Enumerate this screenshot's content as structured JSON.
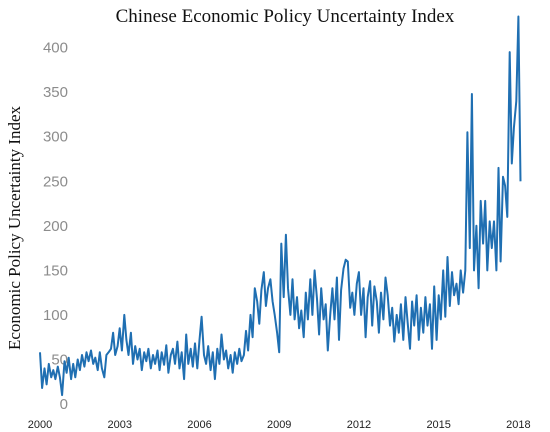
{
  "chart_data": {
    "type": "line",
    "title": "Chinese Economic Policy Uncertainty Index",
    "xlabel": "",
    "ylabel": "Economic Policy Uncertainty Index",
    "xlim": [
      2000.0,
      2019.0
    ],
    "ylim": [
      0,
      440
    ],
    "grid": false,
    "line_color": "#1f6fb2",
    "y_ticks": [
      {
        "label": "0",
        "value": 0
      },
      {
        "label": "50",
        "value": 50
      },
      {
        "label": "100",
        "value": 100
      },
      {
        "label": "150",
        "value": 150
      },
      {
        "label": "200",
        "value": 200
      },
      {
        "label": "250",
        "value": 250
      },
      {
        "label": "300",
        "value": 300
      },
      {
        "label": "350",
        "value": 350
      },
      {
        "label": "400",
        "value": 400
      }
    ],
    "x_ticks": [
      {
        "label": "2000",
        "value": 2000
      },
      {
        "label": "2003",
        "value": 2003
      },
      {
        "label": "2006",
        "value": 2006
      },
      {
        "label": "2009",
        "value": 2009
      },
      {
        "label": "2012",
        "value": 2012
      },
      {
        "label": "2015",
        "value": 2015
      },
      {
        "label": "2018",
        "value": 2018
      }
    ],
    "series": [
      {
        "values": [
          [
            2000.0,
            58
          ],
          [
            2000.08,
            18
          ],
          [
            2000.17,
            40
          ],
          [
            2000.25,
            22
          ],
          [
            2000.33,
            45
          ],
          [
            2000.42,
            30
          ],
          [
            2000.5,
            38
          ],
          [
            2000.58,
            28
          ],
          [
            2000.67,
            42
          ],
          [
            2000.75,
            30
          ],
          [
            2000.83,
            10
          ],
          [
            2000.92,
            48
          ],
          [
            2001.0,
            35
          ],
          [
            2001.08,
            52
          ],
          [
            2001.17,
            28
          ],
          [
            2001.25,
            45
          ],
          [
            2001.33,
            30
          ],
          [
            2001.42,
            50
          ],
          [
            2001.5,
            38
          ],
          [
            2001.58,
            55
          ],
          [
            2001.67,
            42
          ],
          [
            2001.75,
            58
          ],
          [
            2001.83,
            48
          ],
          [
            2001.92,
            60
          ],
          [
            2002.0,
            45
          ],
          [
            2002.08,
            52
          ],
          [
            2002.17,
            38
          ],
          [
            2002.25,
            58
          ],
          [
            2002.33,
            40
          ],
          [
            2002.42,
            30
          ],
          [
            2002.5,
            55
          ],
          [
            2002.58,
            58
          ],
          [
            2002.67,
            62
          ],
          [
            2002.75,
            80
          ],
          [
            2002.83,
            55
          ],
          [
            2002.92,
            65
          ],
          [
            2003.0,
            85
          ],
          [
            2003.08,
            60
          ],
          [
            2003.17,
            100
          ],
          [
            2003.25,
            72
          ],
          [
            2003.33,
            55
          ],
          [
            2003.42,
            80
          ],
          [
            2003.5,
            45
          ],
          [
            2003.58,
            65
          ],
          [
            2003.67,
            50
          ],
          [
            2003.75,
            62
          ],
          [
            2003.83,
            38
          ],
          [
            2003.92,
            58
          ],
          [
            2004.0,
            48
          ],
          [
            2004.08,
            62
          ],
          [
            2004.17,
            40
          ],
          [
            2004.25,
            55
          ],
          [
            2004.33,
            45
          ],
          [
            2004.42,
            60
          ],
          [
            2004.5,
            38
          ],
          [
            2004.58,
            58
          ],
          [
            2004.67,
            44
          ],
          [
            2004.75,
            66
          ],
          [
            2004.83,
            35
          ],
          [
            2004.92,
            55
          ],
          [
            2005.0,
            62
          ],
          [
            2005.08,
            45
          ],
          [
            2005.17,
            70
          ],
          [
            2005.25,
            40
          ],
          [
            2005.33,
            58
          ],
          [
            2005.42,
            28
          ],
          [
            2005.5,
            78
          ],
          [
            2005.58,
            45
          ],
          [
            2005.67,
            62
          ],
          [
            2005.75,
            42
          ],
          [
            2005.83,
            68
          ],
          [
            2005.92,
            40
          ],
          [
            2006.0,
            72
          ],
          [
            2006.08,
            98
          ],
          [
            2006.17,
            55
          ],
          [
            2006.25,
            45
          ],
          [
            2006.33,
            65
          ],
          [
            2006.42,
            38
          ],
          [
            2006.5,
            58
          ],
          [
            2006.58,
            28
          ],
          [
            2006.67,
            62
          ],
          [
            2006.75,
            45
          ],
          [
            2006.83,
            78
          ],
          [
            2006.92,
            50
          ],
          [
            2007.0,
            60
          ],
          [
            2007.08,
            40
          ],
          [
            2007.17,
            55
          ],
          [
            2007.25,
            35
          ],
          [
            2007.33,
            58
          ],
          [
            2007.42,
            45
          ],
          [
            2007.5,
            62
          ],
          [
            2007.58,
            48
          ],
          [
            2007.67,
            55
          ],
          [
            2007.75,
            82
          ],
          [
            2007.83,
            60
          ],
          [
            2007.92,
            100
          ],
          [
            2008.0,
            75
          ],
          [
            2008.08,
            130
          ],
          [
            2008.17,
            115
          ],
          [
            2008.25,
            90
          ],
          [
            2008.33,
            128
          ],
          [
            2008.42,
            148
          ],
          [
            2008.5,
            110
          ],
          [
            2008.58,
            130
          ],
          [
            2008.67,
            140
          ],
          [
            2008.75,
            115
          ],
          [
            2008.83,
            100
          ],
          [
            2008.92,
            80
          ],
          [
            2009.0,
            58
          ],
          [
            2009.08,
            180
          ],
          [
            2009.17,
            120
          ],
          [
            2009.25,
            190
          ],
          [
            2009.33,
            130
          ],
          [
            2009.42,
            100
          ],
          [
            2009.5,
            140
          ],
          [
            2009.58,
            95
          ],
          [
            2009.67,
            120
          ],
          [
            2009.75,
            85
          ],
          [
            2009.83,
            105
          ],
          [
            2009.92,
            75
          ],
          [
            2010.0,
            125
          ],
          [
            2010.08,
            95
          ],
          [
            2010.17,
            140
          ],
          [
            2010.25,
            100
          ],
          [
            2010.33,
            150
          ],
          [
            2010.42,
            118
          ],
          [
            2010.5,
            78
          ],
          [
            2010.58,
            130
          ],
          [
            2010.67,
            95
          ],
          [
            2010.75,
            112
          ],
          [
            2010.83,
            60
          ],
          [
            2010.92,
            100
          ],
          [
            2011.0,
            130
          ],
          [
            2011.08,
            95
          ],
          [
            2011.17,
            142
          ],
          [
            2011.25,
            72
          ],
          [
            2011.33,
            128
          ],
          [
            2011.42,
            152
          ],
          [
            2011.5,
            162
          ],
          [
            2011.58,
            160
          ],
          [
            2011.67,
            108
          ],
          [
            2011.75,
            125
          ],
          [
            2011.83,
            100
          ],
          [
            2011.92,
            135
          ],
          [
            2012.0,
            148
          ],
          [
            2012.08,
            100
          ],
          [
            2012.17,
            130
          ],
          [
            2012.25,
            75
          ],
          [
            2012.33,
            120
          ],
          [
            2012.42,
            138
          ],
          [
            2012.5,
            88
          ],
          [
            2012.58,
            132
          ],
          [
            2012.67,
            115
          ],
          [
            2012.75,
            80
          ],
          [
            2012.83,
            125
          ],
          [
            2012.92,
            95
          ],
          [
            2013.0,
            142
          ],
          [
            2013.08,
            122
          ],
          [
            2013.17,
            88
          ],
          [
            2013.25,
            108
          ],
          [
            2013.33,
            70
          ],
          [
            2013.42,
            100
          ],
          [
            2013.5,
            80
          ],
          [
            2013.58,
            112
          ],
          [
            2013.67,
            72
          ],
          [
            2013.75,
            120
          ],
          [
            2013.83,
            92
          ],
          [
            2013.92,
            62
          ],
          [
            2014.0,
            115
          ],
          [
            2014.08,
            88
          ],
          [
            2014.17,
            122
          ],
          [
            2014.25,
            72
          ],
          [
            2014.33,
            108
          ],
          [
            2014.42,
            80
          ],
          [
            2014.5,
            120
          ],
          [
            2014.58,
            88
          ],
          [
            2014.67,
            112
          ],
          [
            2014.75,
            62
          ],
          [
            2014.83,
            132
          ],
          [
            2014.92,
            72
          ],
          [
            2015.0,
            122
          ],
          [
            2015.08,
            95
          ],
          [
            2015.17,
            150
          ],
          [
            2015.25,
            98
          ],
          [
            2015.33,
            165
          ],
          [
            2015.42,
            110
          ],
          [
            2015.5,
            148
          ],
          [
            2015.58,
            122
          ],
          [
            2015.67,
            135
          ],
          [
            2015.75,
            112
          ],
          [
            2015.83,
            150
          ],
          [
            2015.92,
            125
          ],
          [
            2016.0,
            150
          ],
          [
            2016.08,
            305
          ],
          [
            2016.17,
            175
          ],
          [
            2016.25,
            348
          ],
          [
            2016.33,
            150
          ],
          [
            2016.42,
            200
          ],
          [
            2016.5,
            130
          ],
          [
            2016.58,
            228
          ],
          [
            2016.67,
            180
          ],
          [
            2016.75,
            228
          ],
          [
            2016.83,
            150
          ],
          [
            2016.92,
            205
          ],
          [
            2017.0,
            175
          ],
          [
            2017.08,
            205
          ],
          [
            2017.17,
            150
          ],
          [
            2017.25,
            265
          ],
          [
            2017.33,
            160
          ],
          [
            2017.42,
            255
          ],
          [
            2017.5,
            245
          ],
          [
            2017.58,
            210
          ],
          [
            2017.67,
            395
          ],
          [
            2017.75,
            270
          ],
          [
            2017.83,
            310
          ],
          [
            2017.92,
            340
          ],
          [
            2018.0,
            435
          ],
          [
            2018.08,
            250
          ]
        ]
      }
    ]
  }
}
